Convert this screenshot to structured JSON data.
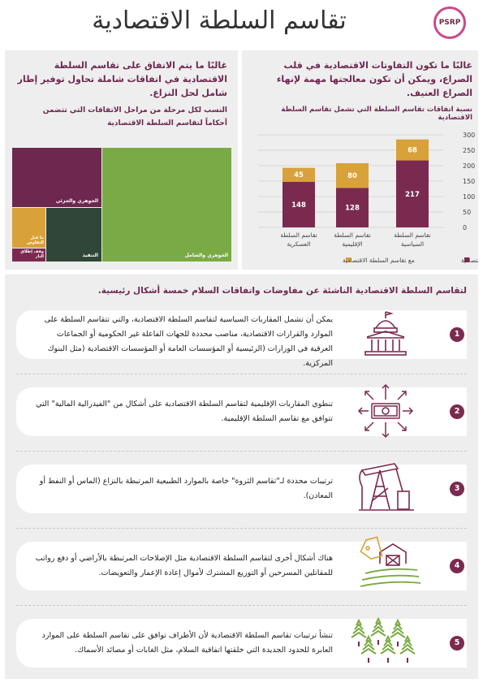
{
  "header": {
    "title": "تقاسم السلطة الاقتصادية",
    "logo_text": "PSRP"
  },
  "left_panel": {
    "heading": "غالبًا ما يتم الاتفاق على تقاسم السلطة الاقتصادية في اتفاقات شاملة تحاول توفير إطار شامل لحل النزاع.",
    "treemap_title": "النسب لكل مرحلة من مراحل الاتفاقات التي تتضمن أحكاماً لتقاسم السلطة الاقتصادية",
    "treemap_labels": {
      "comprehensive": "الجوهري والشامل",
      "partial": "الجوهري والجزئي",
      "implementation": "التنفيذ",
      "pre_negotiation": "ما قبل التفاوض",
      "ceasefire": "وقف إطلاق النار"
    }
  },
  "right_panel": {
    "heading": "غالبًا ما تكون التفاوتات الاقتصادية في قلب الصراع، ويمكن أن تكون معالجتها مهمة لإنهاء الصراع العنيف.",
    "chart_title": "نسبة اتفاقات تقاسم السلطة التي تشمل تقاسم السلطة الاقتصادية"
  },
  "chart_data": [
    {
      "type": "bar",
      "stacked": true,
      "title": "نسبة اتفاقات تقاسم السلطة التي تشمل تقاسم السلطة الاقتصادية",
      "categories": [
        "تقاسم السلطة السياسية",
        "تقاسم السلطة الإقليمية",
        "تقاسم السلطة العسكرية"
      ],
      "series": [
        {
          "name": "بدون تقاسم السلطة الاقتصادية",
          "values": [
            217,
            128,
            148
          ],
          "color": "#7b2a4f"
        },
        {
          "name": "مع تقاسم السلطة الاقتصادية",
          "values": [
            68,
            80,
            45
          ],
          "color": "#d8a13a"
        }
      ],
      "ylim": [
        0,
        300
      ],
      "yticks": [
        "0",
        "50",
        "100",
        "150",
        "200",
        "250",
        "300"
      ],
      "legend_position": "bottom",
      "grid": true
    },
    {
      "type": "treemap",
      "title": "النسب لكل مرحلة من مراحل الاتفاقات التي تتضمن أحكاماً لتقاسم السلطة الاقتصادية",
      "categories": [
        "الجوهري والشامل",
        "الجوهري والجزئي",
        "التنفيذ",
        "ما قبل التفاوض",
        "وقف إطلاق النار"
      ],
      "values": [
        52,
        26,
        12,
        6,
        4
      ],
      "colors": [
        "#7aaa45",
        "#6d2850",
        "#2f4638",
        "#d8a13a",
        "#7b2a4f"
      ]
    }
  ],
  "section": {
    "heading": "لتقاسم السلطة الاقتصادية الناشئة عن مفاوضات واتفاقات السلام خمسة أشكال رئيسية."
  },
  "items": [
    {
      "number": "1",
      "text": "يمكن أن تشمل المقاربات السياسية لتقاسم السلطة الاقتصادية، والتي تتقاسم السلطة على الموارد والقرارات الاقتصادية، مناصب محددة للجهات الفاعلة غير الحكومية أو الجماعات العرقية في الوزارات (الرئيسية أو المؤسسات العامة أو المؤسسات الاقتصادية (مثل البنوك المركزية.",
      "icon": "government-building-icon"
    },
    {
      "number": "2",
      "text": "تنطوي المقاربات الإقليمية لتقاسم السلطة الاقتصادية على أشكال من \"الفيدرالية المالية\" التي تتوافق مع تقاسم السلطة الإقليمية.",
      "icon": "money-distribution-icon"
    },
    {
      "number": "3",
      "text": "ترتيبات محددة لـ\"تقاسم الثروة\" خاصة بالموارد الطبيعية المرتبطة بالنزاع (الماس أو النفط أو المعادن).",
      "icon": "oil-pump-icon"
    },
    {
      "number": "4",
      "text": "هناك أشكال أخرى لتقاسم السلطة الاقتصادية مثل الإصلاحات المرتبطة بالأراضي أو دفع رواتب للمقاتلين المسرحين أو التوزيع المشترك لأموال إعادة الإعمار والتعويضات.",
      "icon": "farm-land-icon"
    },
    {
      "number": "5",
      "text": "تنشأ ترتيبات تقاسم السلطة الاقتصادية لأن الأطراف توافق على تقاسم السلطة على الموارد العابرة للحدود الجديدة التي خلقتها اتفاقية السلام، مثل الغابات أو مصائد الأسماك.",
      "icon": "forest-icon"
    }
  ]
}
